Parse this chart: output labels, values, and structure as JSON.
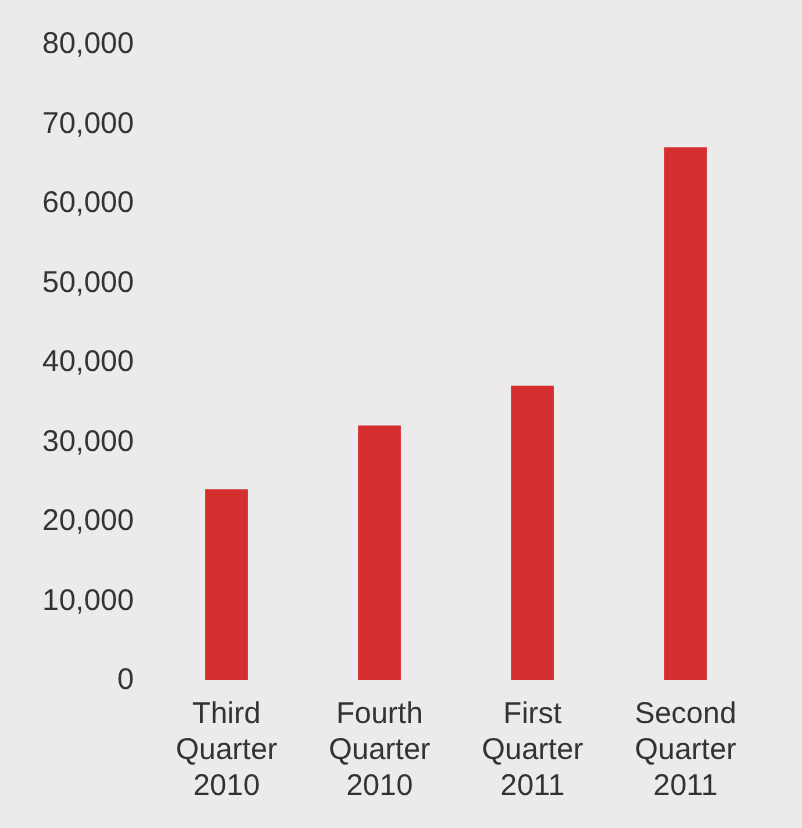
{
  "chart_data": {
    "type": "bar",
    "categories": [
      "Third Quarter 2010",
      "Fourth Quarter 2010",
      "First Quarter 2011",
      "Second Quarter 2011"
    ],
    "values": [
      24000,
      32000,
      37000,
      67000
    ],
    "color": "#d42e2e",
    "ylim": [
      0,
      80000
    ],
    "yticks": [
      0,
      {
        "value": 10000,
        "label": "10,000"
      },
      {
        "value": 20000,
        "label": "20,000"
      },
      {
        "value": 30000,
        "label": "30,000"
      },
      {
        "value": 40000,
        "label": "40,000"
      },
      {
        "value": 50000,
        "label": "50,000"
      },
      {
        "value": 60000,
        "label": "60,000"
      },
      {
        "value": 70000,
        "label": "70,000"
      },
      {
        "value": 80000,
        "label": "80,000"
      }
    ],
    "grid": false
  }
}
